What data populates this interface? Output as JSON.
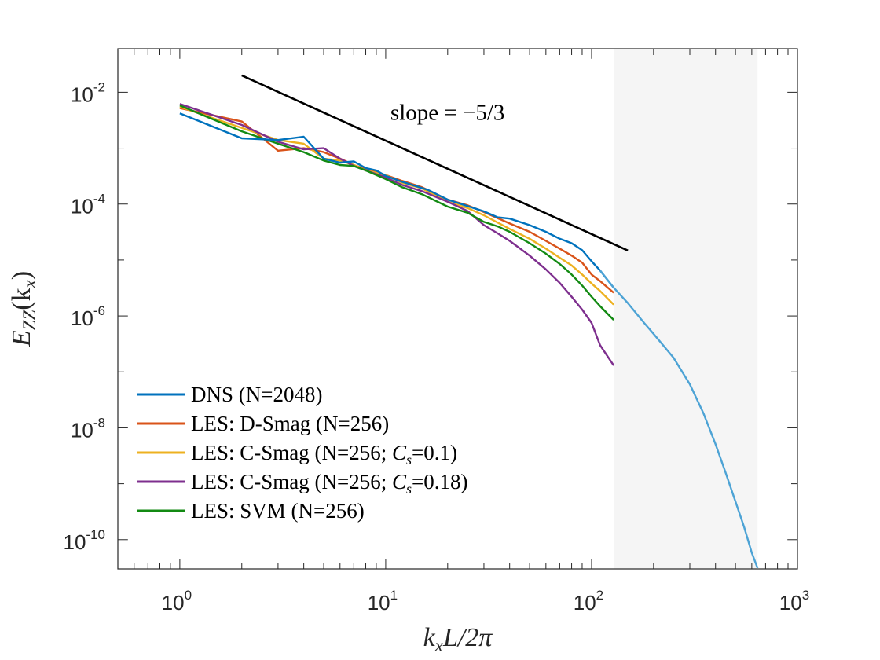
{
  "chart_data": {
    "type": "line",
    "xscale": "log",
    "yscale": "log",
    "xlim": [
      0.5,
      1000
    ],
    "ylim": [
      3e-11,
      0.06
    ],
    "x_ticks": [
      {
        "mant": "10",
        "exp": "0",
        "value": 1
      },
      {
        "mant": "10",
        "exp": "1",
        "value": 10
      },
      {
        "mant": "10",
        "exp": "2",
        "value": 100
      },
      {
        "mant": "10",
        "exp": "3",
        "value": 1000
      }
    ],
    "y_ticks": [
      {
        "mant": "10",
        "exp": "-2",
        "value": 0.01
      },
      {
        "mant": "10",
        "exp": "-4",
        "value": 0.0001
      },
      {
        "mant": "10",
        "exp": "-6",
        "value": 1e-06
      },
      {
        "mant": "10",
        "exp": "-8",
        "value": 1e-08
      },
      {
        "mant": "10",
        "exp": "-10",
        "value": 1e-10
      }
    ],
    "xlabel": {
      "base": "k",
      "sub": "x",
      "rest": "L/2π"
    },
    "ylabel": {
      "base": "E",
      "sub": "ZZ",
      "rest": "(k",
      "sub2": "x",
      "close": ")"
    },
    "shaded_region": {
      "x": [
        128,
        640
      ],
      "color": "#f5f5f5"
    },
    "reference_line": {
      "label": "slope = −5/3",
      "x": [
        2,
        150
      ],
      "y": [
        0.02,
        1.48e-05
      ],
      "slope": -1.6667,
      "color": "#000000"
    },
    "grid": false,
    "legend_position": "bottom-left",
    "series": [
      {
        "name": "DNS (N=2048)",
        "color": "#0072BD",
        "tail_color": "#4DA3D5",
        "x": [
          1,
          2,
          3,
          4,
          5,
          6,
          7,
          8,
          9,
          10,
          12,
          14,
          16,
          20,
          25,
          30,
          35,
          40,
          50,
          60,
          70,
          80,
          90,
          100,
          110,
          128,
          150,
          180,
          200,
          250,
          300,
          350,
          400,
          450,
          500,
          550,
          600,
          640
        ],
        "y": [
          0.0042,
          0.0015,
          0.0014,
          0.0016,
          0.00065,
          0.00055,
          0.00058,
          0.00044,
          0.0004,
          0.00032,
          0.00025,
          0.00021,
          0.00018,
          0.00012,
          9.2e-05,
          7.4e-05,
          5.8e-05,
          5.5e-05,
          4.2e-05,
          3.2e-05,
          2.4e-05,
          2e-05,
          1.5e-05,
          9.5e-06,
          6.5e-06,
          3.2e-06,
          1.7e-06,
          7.5e-07,
          4.8e-07,
          1.8e-07,
          6e-08,
          1.8e-08,
          5.1e-09,
          1.5e-09,
          4.8e-10,
          1.7e-10,
          5.8e-11,
          3.1e-11
        ]
      },
      {
        "name": "LES: D-Smag (N=256)",
        "color": "#D95319",
        "x": [
          1,
          2,
          3,
          4,
          5,
          6,
          7,
          8,
          10,
          12,
          15,
          20,
          25,
          30,
          40,
          50,
          60,
          70,
          80,
          90,
          100,
          110,
          128
        ],
        "y": [
          0.0052,
          0.003,
          0.0009,
          0.001,
          0.00085,
          0.00065,
          0.0005,
          0.00042,
          0.00033,
          0.00026,
          0.0002,
          0.00012,
          9.5e-05,
          7.2e-05,
          4.5e-05,
          3.2e-05,
          2.2e-05,
          1.6e-05,
          1.2e-05,
          9e-06,
          5.5e-06,
          4.2e-06,
          2.6e-06
        ]
      },
      {
        "name": "LES: C-Smag (N=256; C_s=0.1)",
        "color": "#EDB120",
        "x": [
          1,
          2,
          3,
          4,
          5,
          6,
          7,
          8,
          10,
          12,
          15,
          20,
          25,
          30,
          40,
          50,
          60,
          70,
          80,
          90,
          100,
          110,
          128
        ],
        "y": [
          0.0055,
          0.0023,
          0.0014,
          0.0012,
          0.00065,
          0.0006,
          0.0005,
          0.0004,
          0.00033,
          0.00024,
          0.00019,
          0.00011,
          8.5e-05,
          6.3e-05,
          3.6e-05,
          2.4e-05,
          1.6e-05,
          1.1e-05,
          8e-06,
          5.5e-06,
          3.8e-06,
          2.8e-06,
          1.6e-06
        ]
      },
      {
        "name": "LES: C-Smag (N=256; C_s=0.18)",
        "color": "#7E2F8E",
        "x": [
          1,
          2,
          3,
          4,
          5,
          6,
          7,
          8,
          10,
          12,
          15,
          20,
          25,
          30,
          35,
          40,
          50,
          60,
          70,
          80,
          90,
          100,
          110,
          128
        ],
        "y": [
          0.0062,
          0.0026,
          0.0013,
          0.00095,
          0.001,
          0.00065,
          0.00048,
          0.0004,
          0.0003,
          0.00022,
          0.00017,
          0.00011,
          7.5e-05,
          4.2e-05,
          3e-05,
          2.2e-05,
          1.2e-05,
          6.8e-06,
          3.9e-06,
          2.2e-06,
          1.3e-06,
          7.5e-07,
          3e-07,
          1.3e-07
        ]
      },
      {
        "name": "LES: SVM (N=256)",
        "color": "#138A13",
        "x": [
          1,
          2,
          3,
          4,
          5,
          6,
          7,
          8,
          10,
          12,
          15,
          20,
          25,
          30,
          35,
          40,
          50,
          60,
          70,
          80,
          90,
          100,
          110,
          128
        ],
        "y": [
          0.0058,
          0.002,
          0.0012,
          0.00085,
          0.0006,
          0.0005,
          0.00048,
          0.0004,
          0.00028,
          0.0002,
          0.00015,
          9e-05,
          7e-05,
          4.8e-05,
          4e-05,
          3.2e-05,
          2e-05,
          1.3e-05,
          8.5e-06,
          5.5e-06,
          3.5e-06,
          2.2e-06,
          1.5e-06,
          8.5e-07
        ]
      }
    ]
  }
}
